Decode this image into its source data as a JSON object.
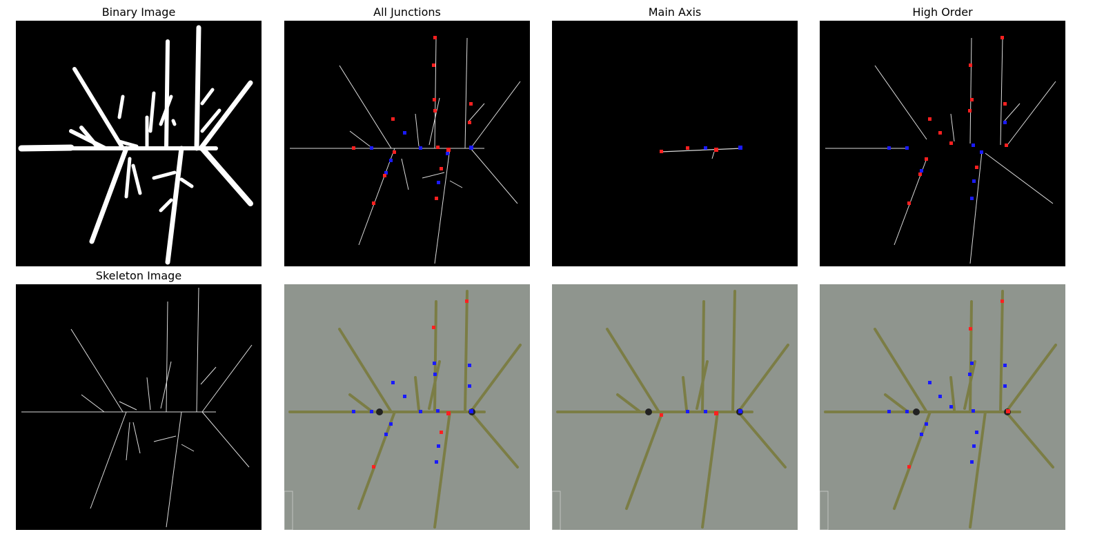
{
  "titles": {
    "binary": "Binary Image",
    "all_junctions": "All Junctions",
    "main_axis": "Main Axis",
    "high_order": "High Order",
    "skeleton": "Skeleton Image"
  },
  "colors": {
    "background_black": "#000000",
    "foreground_white": "#ffffff",
    "photo_background": "#8f958e",
    "plant_green": "#7b7d45",
    "junction_red": "#ff2020",
    "junction_blue": "#1a1aff"
  }
}
